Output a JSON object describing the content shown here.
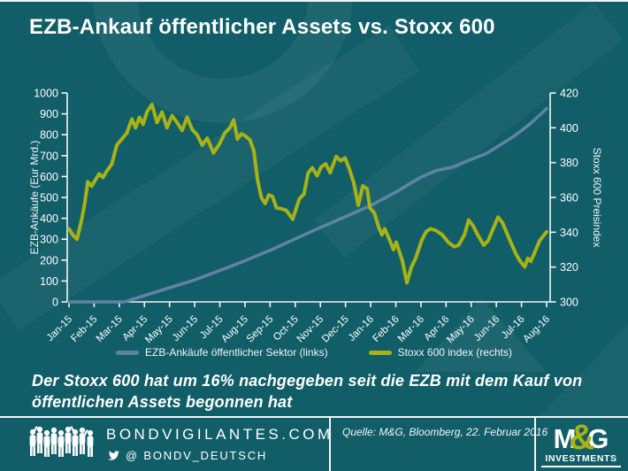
{
  "title": "EZB-Ankauf öffentlicher Assets vs. Stoxx 600",
  "annotation": {
    "line1": "Der Stoxx 600 hat um 16% nachgegeben seit die EZB mit dem Kauf von",
    "line2": "öffentlichen Assets begonnen hat"
  },
  "footer": {
    "site": "BONDVIGILANTES.COM",
    "twitter": "@ BONDV_DEUTSCH",
    "source": "Quelle: M&G, Bloomberg, 22. Februar 2016",
    "logo": {
      "m": "M",
      "amp": "&",
      "g": "G",
      "sub": "INVESTMENTS"
    }
  },
  "colors": {
    "background": "#115e68",
    "line_blue": "#6082a6",
    "line_green": "#a7b315",
    "axis": "#f2f5f5",
    "text": "#ffffff"
  },
  "chart_data": {
    "type": "line",
    "title": "EZB-Ankauf öffentlicher Assets vs. Stoxx 600",
    "grid": false,
    "legend_position": "bottom",
    "x_labels": [
      "Jan-15",
      "Feb-15",
      "Mar-15",
      "Apr-15",
      "May-15",
      "Jun-15",
      "Jul-15",
      "Aug-15",
      "Sep-15",
      "Oct-15",
      "Nov-15",
      "Dec-15",
      "Jan-16",
      "Feb-16",
      "Mar-16",
      "Apr-16",
      "May-16",
      "Jun-16",
      "Jul-16",
      "Aug-16"
    ],
    "left_axis": {
      "title": "EZB-Ankäufe (Eur Mrd.)",
      "min": 0,
      "max": 1000,
      "step": 100
    },
    "right_axis": {
      "title": "Stoxx 600 Preisindex",
      "min": 300,
      "max": 420,
      "step": 20
    },
    "series": [
      {
        "name": "EZB-Ankäufe öffentlicher Sektor (links)",
        "axis": "left",
        "color": "#6082a6",
        "points": [
          [
            0,
            0
          ],
          [
            1,
            0
          ],
          [
            2.2,
            0
          ],
          [
            3,
            30
          ],
          [
            4,
            68
          ],
          [
            5,
            105
          ],
          [
            6,
            150
          ],
          [
            7,
            197
          ],
          [
            8,
            247
          ],
          [
            9,
            302
          ],
          [
            10,
            356
          ],
          [
            11,
            408
          ],
          [
            12,
            461
          ],
          [
            13,
            526
          ],
          [
            14,
            597
          ],
          [
            14.6,
            628
          ],
          [
            15.3,
            646
          ],
          [
            16,
            682
          ],
          [
            16.6,
            710
          ],
          [
            17,
            740
          ],
          [
            17.7,
            793
          ],
          [
            18.3,
            848
          ],
          [
            18.8,
            902
          ],
          [
            19,
            925
          ]
        ]
      },
      {
        "name": "Stoxx 600 index (rechts)",
        "axis": "right",
        "color": "#a7b315",
        "points": [
          [
            0,
            342
          ],
          [
            0.15,
            338.5
          ],
          [
            0.32,
            336
          ],
          [
            0.5,
            347
          ],
          [
            0.62,
            356
          ],
          [
            0.75,
            369
          ],
          [
            0.9,
            366.5
          ],
          [
            1.05,
            370
          ],
          [
            1.2,
            373.5
          ],
          [
            1.35,
            371.5
          ],
          [
            1.5,
            375
          ],
          [
            1.7,
            379
          ],
          [
            1.9,
            390
          ],
          [
            2.1,
            393.5
          ],
          [
            2.3,
            397
          ],
          [
            2.5,
            405
          ],
          [
            2.65,
            400
          ],
          [
            2.8,
            406
          ],
          [
            2.95,
            402
          ],
          [
            3.1,
            409
          ],
          [
            3.3,
            413.5
          ],
          [
            3.5,
            403
          ],
          [
            3.7,
            409
          ],
          [
            3.9,
            400
          ],
          [
            4.1,
            407
          ],
          [
            4.3,
            403
          ],
          [
            4.5,
            398.5
          ],
          [
            4.7,
            406
          ],
          [
            4.9,
            399
          ],
          [
            5.1,
            396
          ],
          [
            5.3,
            390
          ],
          [
            5.5,
            394
          ],
          [
            5.75,
            385.5
          ],
          [
            6,
            391
          ],
          [
            6.2,
            397
          ],
          [
            6.4,
            400
          ],
          [
            6.55,
            404.5
          ],
          [
            6.7,
            393.5
          ],
          [
            6.85,
            396.5
          ],
          [
            7,
            395.5
          ],
          [
            7.2,
            393
          ],
          [
            7.35,
            387
          ],
          [
            7.5,
            370
          ],
          [
            7.65,
            360
          ],
          [
            7.8,
            356.5
          ],
          [
            7.95,
            361.5
          ],
          [
            8.1,
            360.5
          ],
          [
            8.25,
            354
          ],
          [
            8.45,
            353.5
          ],
          [
            8.65,
            352.5
          ],
          [
            8.9,
            347.5
          ],
          [
            9.16,
            359
          ],
          [
            9.35,
            362
          ],
          [
            9.51,
            374
          ],
          [
            9.68,
            377
          ],
          [
            9.87,
            372.5
          ],
          [
            10.03,
            377.5
          ],
          [
            10.21,
            379.3
          ],
          [
            10.39,
            374.2
          ],
          [
            10.63,
            383.5
          ],
          [
            10.81,
            381
          ],
          [
            10.98,
            382.7
          ],
          [
            11.16,
            376
          ],
          [
            11.33,
            368.3
          ],
          [
            11.51,
            355.5
          ],
          [
            11.69,
            366.6
          ],
          [
            11.86,
            364.9
          ],
          [
            11.97,
            354
          ],
          [
            12.15,
            351
          ],
          [
            12.32,
            343
          ],
          [
            12.45,
            338.5
          ],
          [
            12.56,
            342
          ],
          [
            12.74,
            336
          ],
          [
            12.91,
            330
          ],
          [
            13.02,
            334.3
          ],
          [
            13.27,
            323.3
          ],
          [
            13.44,
            311
          ],
          [
            13.62,
            320
          ],
          [
            13.79,
            325
          ],
          [
            14.03,
            335.2
          ],
          [
            14.2,
            340.2
          ],
          [
            14.38,
            342
          ],
          [
            14.6,
            341
          ],
          [
            14.85,
            338.5
          ],
          [
            15.08,
            334.3
          ],
          [
            15.32,
            331.7
          ],
          [
            15.5,
            332.6
          ],
          [
            15.73,
            338.5
          ],
          [
            15.9,
            347
          ],
          [
            16.08,
            343.6
          ],
          [
            16.26,
            338.5
          ],
          [
            16.5,
            332.6
          ],
          [
            16.67,
            335.1
          ],
          [
            17.07,
            348.7
          ],
          [
            17.25,
            345.3
          ],
          [
            17.42,
            339.4
          ],
          [
            17.6,
            333.4
          ],
          [
            17.78,
            327.5
          ],
          [
            17.95,
            323.3
          ],
          [
            18.13,
            320.2
          ],
          [
            18.25,
            325
          ],
          [
            18.37,
            323.3
          ],
          [
            18.55,
            329.2
          ],
          [
            18.72,
            335.1
          ],
          [
            18.9,
            338.5
          ],
          [
            19,
            340.2
          ]
        ]
      }
    ]
  }
}
